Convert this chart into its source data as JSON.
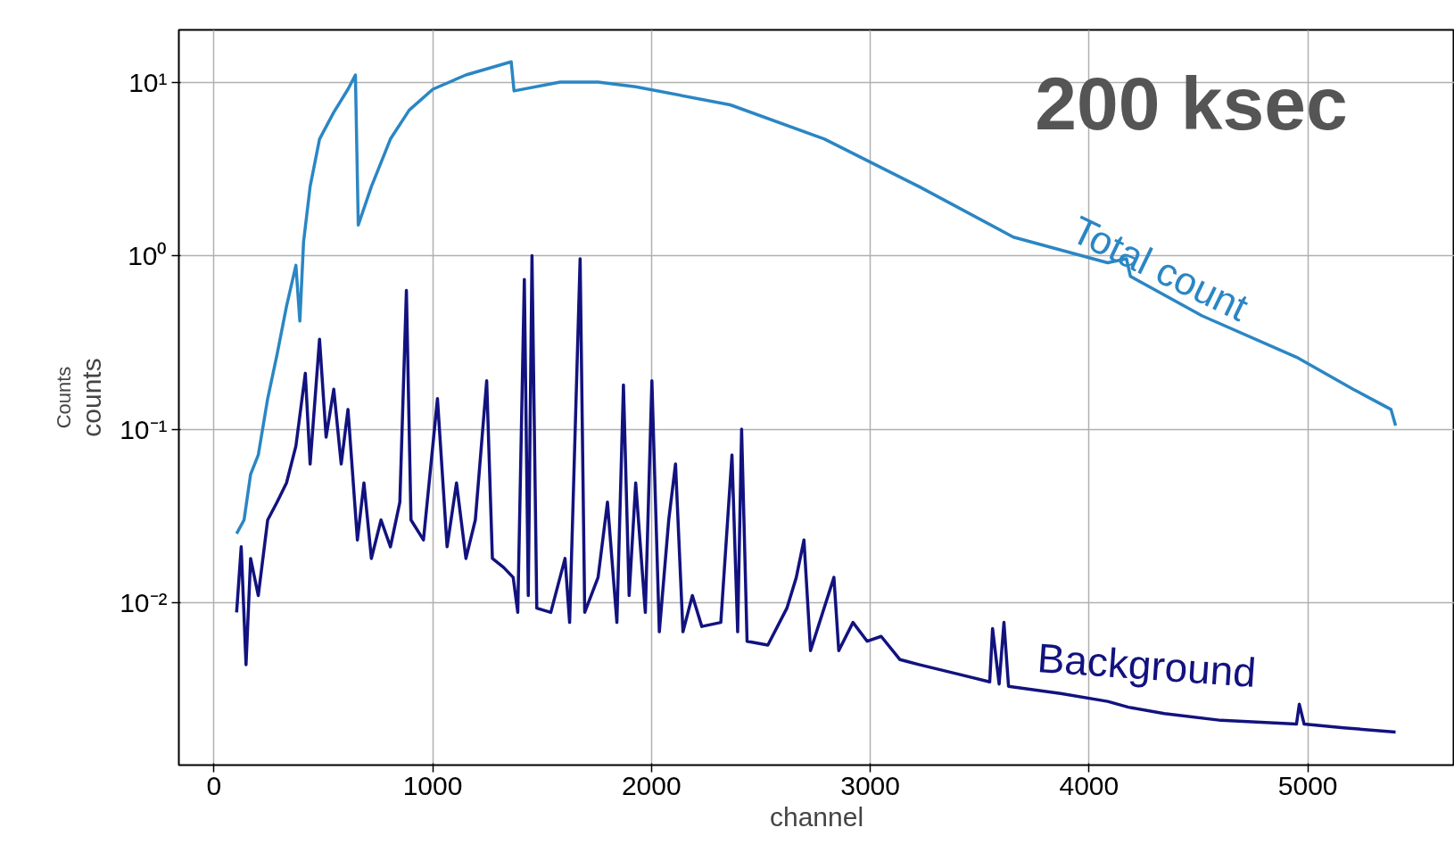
{
  "chart_data": {
    "type": "line",
    "xlabel": "channel",
    "ylabel": "counts",
    "log": "y",
    "grid": true,
    "legend": false,
    "marker": "none",
    "line_style": "solid",
    "xlim": [
      -160,
      5670
    ],
    "ylim": [
      0.00116,
      20
    ],
    "xticks": [
      0,
      1000,
      2000,
      3000,
      4000,
      5000
    ],
    "yticks": [
      {
        "value": 0.01,
        "label": "10⁻²"
      },
      {
        "value": 0.1,
        "label": "10⁻¹"
      },
      {
        "value": 1,
        "label": "10⁰"
      },
      {
        "value": 10,
        "label": "10¹"
      }
    ],
    "annotations": [
      "200 ksec",
      "Counts"
    ],
    "series": [
      {
        "name": "Total count",
        "color": "#2b86c4",
        "x": [
          104,
          138,
          168,
          203,
          246,
          289,
          332,
          375,
          393,
          410,
          440,
          483,
          548,
          613,
          647,
          660,
          720,
          807,
          893,
          1001,
          1152,
          1359,
          1372,
          1583,
          1756,
          1928,
          2360,
          2791,
          3223,
          3654,
          4085,
          4171,
          4189,
          4517,
          4948,
          5207,
          5380,
          5401
        ],
        "values": [
          0.025,
          0.03,
          0.055,
          0.071,
          0.15,
          0.27,
          0.51,
          0.88,
          0.42,
          1.2,
          2.5,
          4.7,
          6.7,
          9.1,
          11.0,
          1.5,
          2.5,
          4.7,
          6.9,
          9.1,
          11.0,
          13.1,
          8.9,
          10.0,
          10.0,
          9.4,
          7.4,
          4.7,
          2.5,
          1.28,
          0.91,
          0.96,
          0.76,
          0.45,
          0.26,
          0.17,
          0.13,
          0.105
        ]
      },
      {
        "name": "Background",
        "color": "#12127f",
        "x": [
          104,
          125,
          147,
          168,
          203,
          246,
          289,
          332,
          375,
          418,
          440,
          483,
          513,
          548,
          582,
          613,
          656,
          686,
          720,
          764,
          807,
          850,
          880,
          901,
          958,
          1022,
          1066,
          1109,
          1152,
          1195,
          1247,
          1273,
          1324,
          1368,
          1389,
          1419,
          1437,
          1454,
          1476,
          1540,
          1605,
          1626,
          1674,
          1695,
          1756,
          1799,
          1842,
          1872,
          1898,
          1928,
          1972,
          2002,
          2036,
          2079,
          2110,
          2144,
          2187,
          2230,
          2317,
          2368,
          2394,
          2412,
          2437,
          2532,
          2619,
          2662,
          2697,
          2727,
          2834,
          2856,
          2921,
          2986,
          3050,
          3136,
          3223,
          3395,
          3546,
          3559,
          3589,
          3611,
          3632,
          3870,
          4085,
          4180,
          4344,
          4603,
          4948,
          4961,
          4983,
          5164,
          5401
        ],
        "values": [
          0.0088,
          0.021,
          0.0044,
          0.018,
          0.011,
          0.03,
          0.038,
          0.049,
          0.08,
          0.21,
          0.063,
          0.33,
          0.09,
          0.17,
          0.063,
          0.13,
          0.023,
          0.049,
          0.018,
          0.03,
          0.021,
          0.038,
          0.63,
          0.03,
          0.023,
          0.15,
          0.021,
          0.049,
          0.018,
          0.03,
          0.19,
          0.018,
          0.016,
          0.014,
          0.0088,
          0.73,
          0.011,
          1.0,
          0.0093,
          0.0088,
          0.018,
          0.0077,
          0.96,
          0.0088,
          0.014,
          0.038,
          0.0077,
          0.18,
          0.011,
          0.049,
          0.0088,
          0.19,
          0.0068,
          0.03,
          0.063,
          0.0068,
          0.011,
          0.0073,
          0.0077,
          0.071,
          0.0068,
          0.1,
          0.006,
          0.0057,
          0.0093,
          0.014,
          0.023,
          0.0053,
          0.014,
          0.0053,
          0.0077,
          0.006,
          0.0064,
          0.0047,
          0.0044,
          0.0039,
          0.0035,
          0.0071,
          0.0034,
          0.0077,
          0.0033,
          0.003,
          0.0027,
          0.0025,
          0.0023,
          0.0021,
          0.002,
          0.0026,
          0.002,
          0.0019,
          0.0018
        ]
      }
    ]
  }
}
